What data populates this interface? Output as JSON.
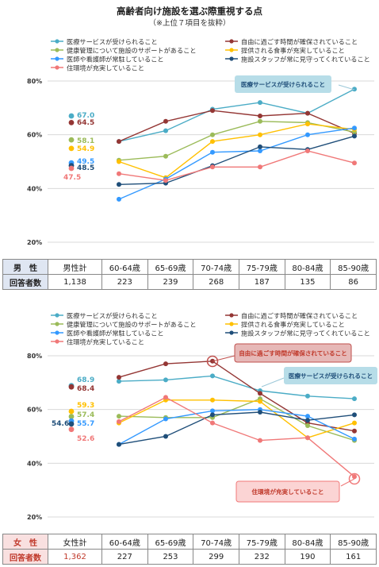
{
  "title": "高齢者向け施設を選ぶ際重視する点",
  "subtitle": "（※上位７項目を抜粋）",
  "colors": {
    "medical": "#4bacc6",
    "freedom": "#943634",
    "management": "#9bbb59",
    "meals": "#ffc000",
    "doctors": "#3399ff",
    "staff": "#1f4e79",
    "environment": "#f07878"
  },
  "legend": [
    {
      "key": "medical",
      "label": "医療サービスが受けられること"
    },
    {
      "key": "freedom",
      "label": "自由に過ごす時間が確保されていること"
    },
    {
      "key": "management",
      "label": "健康管理について施設のサポートがあること"
    },
    {
      "key": "meals",
      "label": "提供される食事が充実していること"
    },
    {
      "key": "doctors",
      "label": "医師や看護師が常駐していること"
    },
    {
      "key": "staff",
      "label": "施設スタッフが常に見守ってくれていること"
    },
    {
      "key": "environment",
      "label": "住環境が充実していること"
    }
  ],
  "chart_data": [
    {
      "type": "line",
      "name": "男性",
      "categories": [
        "60-64歳",
        "65-69歳",
        "70-74歳",
        "75-79歳",
        "80-84歳",
        "85-90歳"
      ],
      "ylim": [
        20,
        80
      ],
      "yticks": [
        "20%",
        "40%",
        "60%",
        "80%"
      ],
      "series": [
        {
          "key": "medical",
          "total": 67.0,
          "values": [
            57.5,
            61.5,
            69.5,
            72.0,
            68.0,
            77.0
          ]
        },
        {
          "key": "freedom",
          "total": 64.5,
          "values": [
            57.5,
            65.0,
            69.0,
            67.0,
            68.0,
            60.5
          ]
        },
        {
          "key": "management",
          "total": 58.1,
          "values": [
            50.5,
            52.0,
            60.0,
            65.0,
            64.5,
            61.0
          ]
        },
        {
          "key": "meals",
          "total": 54.9,
          "values": [
            50.0,
            44.0,
            57.5,
            60.0,
            64.0,
            62.0
          ]
        },
        {
          "key": "doctors",
          "total": 49.5,
          "values": [
            36.0,
            43.5,
            53.5,
            54.0,
            60.0,
            62.5
          ]
        },
        {
          "key": "staff",
          "total": 48.5,
          "values": [
            41.5,
            42.0,
            48.5,
            55.5,
            54.5,
            59.5
          ]
        },
        {
          "key": "environment",
          "total": 47.5,
          "values": [
            45.5,
            43.0,
            48.0,
            48.0,
            54.0,
            49.5
          ]
        }
      ],
      "total_labels": {
        "medical": "67.0",
        "freedom": "64.5",
        "management": "58.1",
        "meals": "54.9",
        "doctors": "49.5",
        "staff": "48.5",
        "environment": "47.5"
      },
      "callouts": [
        {
          "text": "医療サービスが受けられること",
          "series": "medical"
        }
      ]
    },
    {
      "type": "line",
      "name": "女性",
      "categories": [
        "60-64歳",
        "65-69歳",
        "70-74歳",
        "75-79歳",
        "80-84歳",
        "85-90歳"
      ],
      "ylim": [
        20,
        80
      ],
      "yticks": [
        "20%",
        "40%",
        "60%",
        "80%"
      ],
      "series": [
        {
          "key": "medical",
          "total": 68.9,
          "values": [
            70.5,
            71.0,
            72.5,
            67.0,
            65.0,
            64.0
          ]
        },
        {
          "key": "freedom",
          "total": 68.4,
          "values": [
            72.0,
            77.0,
            78.0,
            66.0,
            55.0,
            52.0
          ]
        },
        {
          "key": "management",
          "total": 57.4,
          "values": [
            57.5,
            57.0,
            57.0,
            64.0,
            54.0,
            48.5
          ]
        },
        {
          "key": "meals",
          "total": 59.3,
          "values": [
            55.0,
            63.5,
            63.5,
            63.0,
            49.5,
            55.0
          ]
        },
        {
          "key": "doctors",
          "total": 55.7,
          "values": [
            47.0,
            56.5,
            59.5,
            60.0,
            57.5,
            49.0
          ]
        },
        {
          "key": "staff",
          "total": 54.6,
          "values": [
            47.0,
            50.0,
            58.0,
            59.0,
            56.0,
            58.0
          ]
        },
        {
          "key": "environment",
          "total": 52.6,
          "values": [
            55.5,
            64.5,
            55.0,
            48.5,
            49.5,
            35.0
          ]
        }
      ],
      "total_labels": {
        "medical": "68.9",
        "freedom": "68.4",
        "management": "57.4",
        "meals": "59.3",
        "doctors": "55.7",
        "staff": "54.6",
        "environment": "52.6"
      },
      "callouts": [
        {
          "text": "自由に過ごす時間が確保されていること",
          "series": "freedom"
        },
        {
          "text": "医療サービスが受けられること",
          "series": "medical"
        },
        {
          "text": "住環境が充実していること",
          "series": "environment"
        }
      ]
    }
  ],
  "male_table": {
    "row1": [
      "男　性",
      "男性計",
      "60-64歳",
      "65-69歳",
      "70-74歳",
      "75-79歳",
      "80-84歳",
      "85-90歳"
    ],
    "row2": [
      "回答者数",
      "1,138",
      "223",
      "239",
      "268",
      "187",
      "135",
      "86"
    ]
  },
  "female_table": {
    "row1": [
      "女　性",
      "女性計",
      "60-64歳",
      "65-69歳",
      "70-74歳",
      "75-79歳",
      "80-84歳",
      "85-90歳"
    ],
    "row2": [
      "回答者数",
      "1,362",
      "227",
      "253",
      "299",
      "232",
      "190",
      "161"
    ]
  }
}
